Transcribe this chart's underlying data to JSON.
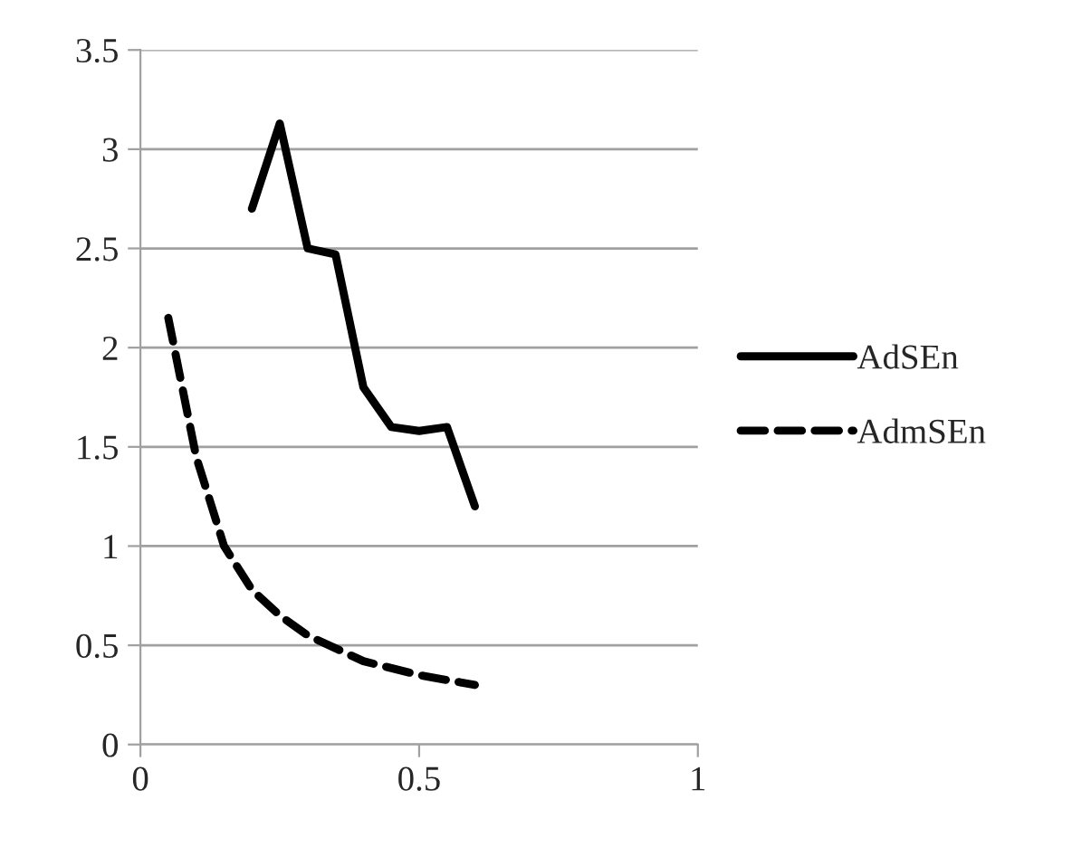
{
  "chart_data": {
    "type": "line",
    "x": [
      0.2,
      0.25,
      0.3,
      0.35,
      0.4,
      0.45,
      0.5,
      0.55,
      0.6
    ],
    "series": [
      {
        "name": "AdSEn",
        "color": "#000000",
        "line_style": "solid",
        "values": [
          2.7,
          3.13,
          2.5,
          2.47,
          1.8,
          1.6,
          1.58,
          1.6,
          1.2
        ]
      },
      {
        "name": "AdmSEn",
        "color": "#000000",
        "line_style": "dashed",
        "x": [
          0.05,
          0.1,
          0.15,
          0.2,
          0.25,
          0.3,
          0.4,
          0.5,
          0.6
        ],
        "values": [
          2.15,
          1.45,
          1.0,
          0.78,
          0.65,
          0.55,
          0.42,
          0.35,
          0.3
        ]
      }
    ],
    "xlim": [
      0,
      1
    ],
    "xticks": [
      0,
      0.5,
      1
    ],
    "ylim": [
      0,
      3.5
    ],
    "yticks": [
      0,
      0.5,
      1,
      1.5,
      2,
      2.5,
      3,
      3.5
    ],
    "grid": "y",
    "legend": "right",
    "marker": "none"
  }
}
